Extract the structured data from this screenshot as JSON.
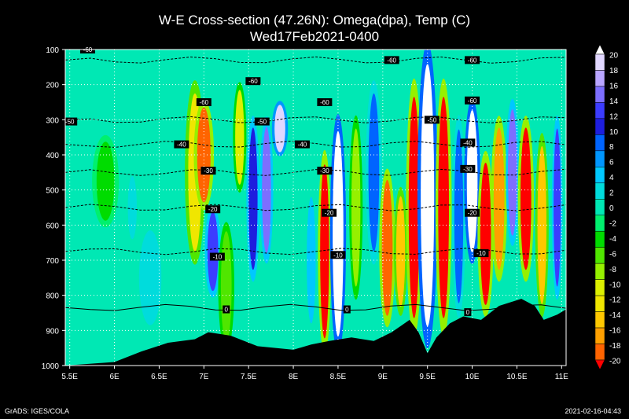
{
  "title": "W-E Cross-section (47.26N): Omega(dpa), Temp (C)",
  "subtitle": "Wed17Feb2021-0400",
  "footer_left": "GrADS: IGES/COLA",
  "footer_right": "2021-02-16-04:43",
  "chart_data": {
    "type": "heatmap",
    "x_ticks": [
      "5.5E",
      "6E",
      "6.5E",
      "7E",
      "7.5E",
      "8E",
      "8.5E",
      "9E",
      "9.5E",
      "10E",
      "10.5E",
      "11E"
    ],
    "x_range": [
      5.45,
      11.05
    ],
    "y_ticks": [
      "100",
      "200",
      "300",
      "400",
      "500",
      "600",
      "700",
      "800",
      "900",
      "1000"
    ],
    "y_range": [
      100,
      1000
    ],
    "colorbar": {
      "levels": [
        "20",
        "18",
        "16",
        "14",
        "12",
        "10",
        "8",
        "6",
        "4",
        "2",
        "0",
        "-2",
        "-4",
        "-6",
        "-8",
        "-10",
        "-12",
        "-14",
        "-16",
        "-18",
        "-20"
      ],
      "colors": [
        "#ffffff",
        "#e1d7ff",
        "#b9a5ff",
        "#7d6eff",
        "#3c3cff",
        "#1e1ede",
        "#0064ff",
        "#0096ff",
        "#00c8ff",
        "#00dcdc",
        "#00e8b4",
        "#00f06e",
        "#00dc00",
        "#50e600",
        "#96f000",
        "#dcf000",
        "#f0e600",
        "#ffc800",
        "#ffa000",
        "#ff6400",
        "#ff0000"
      ]
    },
    "temperature_contours": [
      {
        "label": "-60",
        "p": 130
      },
      {
        "label": "-50",
        "p": 300
      },
      {
        "label": "-40",
        "p": 370
      },
      {
        "label": "-30",
        "p": 450
      },
      {
        "label": "-20",
        "p": 550
      },
      {
        "label": "-10",
        "p": 675
      },
      {
        "label": "0",
        "p": 835
      }
    ],
    "temperature_labels": [
      {
        "label": "-60",
        "lon": 5.7,
        "p": 100
      },
      {
        "label": "-60",
        "lon": 7.0,
        "p": 250
      },
      {
        "label": "-60",
        "lon": 7.55,
        "p": 190
      },
      {
        "label": "-60",
        "lon": 8.35,
        "p": 250
      },
      {
        "label": "-60",
        "lon": 9.1,
        "p": 130
      },
      {
        "label": "-60",
        "lon": 10.0,
        "p": 130
      },
      {
        "label": "-60",
        "lon": 10.0,
        "p": 245
      },
      {
        "label": "-50",
        "lon": 5.5,
        "p": 305
      },
      {
        "label": "-50",
        "lon": 7.65,
        "p": 305
      },
      {
        "label": "-50",
        "lon": 9.55,
        "p": 300
      },
      {
        "label": "-40",
        "lon": 6.75,
        "p": 370
      },
      {
        "label": "-40",
        "lon": 8.1,
        "p": 370
      },
      {
        "label": "-40",
        "lon": 9.95,
        "p": 365
      },
      {
        "label": "-30",
        "lon": 7.05,
        "p": 445
      },
      {
        "label": "-30",
        "lon": 8.35,
        "p": 445
      },
      {
        "label": "-30",
        "lon": 9.95,
        "p": 440
      },
      {
        "label": "-20",
        "lon": 7.1,
        "p": 555
      },
      {
        "label": "-20",
        "lon": 8.4,
        "p": 565
      },
      {
        "label": "-20",
        "lon": 10.0,
        "p": 565
      },
      {
        "label": "-10",
        "lon": 7.15,
        "p": 690
      },
      {
        "label": "-10",
        "lon": 8.5,
        "p": 685
      },
      {
        "label": "-10",
        "lon": 10.1,
        "p": 680
      },
      {
        "label": "0",
        "lon": 7.25,
        "p": 840
      },
      {
        "label": "0",
        "lon": 8.6,
        "p": 840
      },
      {
        "label": "0",
        "lon": 9.95,
        "p": 848
      }
    ],
    "omega_bands": [
      {
        "lon": 5.9,
        "w": 0.2,
        "p0": 350,
        "p1": 600,
        "v": -3
      },
      {
        "lon": 6.2,
        "w": 0.1,
        "p0": 450,
        "p1": 650,
        "v": 3
      },
      {
        "lon": 6.4,
        "w": 0.25,
        "p0": 600,
        "p1": 900,
        "v": 3
      },
      {
        "lon": 6.9,
        "w": 0.15,
        "p0": 200,
        "p1": 700,
        "v": -12
      },
      {
        "lon": 7.0,
        "w": 0.15,
        "p0": 250,
        "p1": 550,
        "v": -18
      },
      {
        "lon": 7.1,
        "w": 0.12,
        "p0": 550,
        "p1": 800,
        "v": 12
      },
      {
        "lon": 7.25,
        "w": 0.12,
        "p0": 600,
        "p1": 950,
        "v": -6
      },
      {
        "lon": 7.4,
        "w": 0.1,
        "p0": 200,
        "p1": 500,
        "v": -10
      },
      {
        "lon": 7.55,
        "w": 0.1,
        "p0": 300,
        "p1": 750,
        "v": 10
      },
      {
        "lon": 7.7,
        "w": 0.1,
        "p0": 300,
        "p1": 700,
        "v": 14
      },
      {
        "lon": 7.85,
        "w": 0.12,
        "p0": 250,
        "p1": 400,
        "v": 18
      },
      {
        "lon": 8.2,
        "w": 0.1,
        "p0": 500,
        "p1": 900,
        "v": 4
      },
      {
        "lon": 8.35,
        "w": 0.1,
        "p0": 400,
        "p1": 950,
        "v": -20
      },
      {
        "lon": 8.5,
        "w": 0.12,
        "p0": 300,
        "p1": 950,
        "v": 20
      },
      {
        "lon": 8.7,
        "w": 0.1,
        "p0": 300,
        "p1": 800,
        "v": -8
      },
      {
        "lon": 8.9,
        "w": 0.12,
        "p0": 200,
        "p1": 700,
        "v": 8
      },
      {
        "lon": 9.05,
        "w": 0.12,
        "p0": 450,
        "p1": 880,
        "v": -18
      },
      {
        "lon": 9.2,
        "w": 0.1,
        "p0": 500,
        "p1": 850,
        "v": -14
      },
      {
        "lon": 9.35,
        "w": 0.12,
        "p0": 200,
        "p1": 900,
        "v": -20
      },
      {
        "lon": 9.5,
        "w": 0.15,
        "p0": 100,
        "p1": 930,
        "v": 20
      },
      {
        "lon": 9.68,
        "w": 0.12,
        "p0": 200,
        "p1": 900,
        "v": -20
      },
      {
        "lon": 9.85,
        "w": 0.1,
        "p0": 300,
        "p1": 850,
        "v": 8
      },
      {
        "lon": 10.0,
        "w": 0.12,
        "p0": 250,
        "p1": 700,
        "v": 20
      },
      {
        "lon": 10.15,
        "w": 0.12,
        "p0": 400,
        "p1": 850,
        "v": -20
      },
      {
        "lon": 10.3,
        "w": 0.12,
        "p0": 300,
        "p1": 750,
        "v": -16
      },
      {
        "lon": 10.45,
        "w": 0.1,
        "p0": 250,
        "p1": 650,
        "v": 14
      },
      {
        "lon": 10.6,
        "w": 0.12,
        "p0": 300,
        "p1": 750,
        "v": -20
      },
      {
        "lon": 10.78,
        "w": 0.1,
        "p0": 350,
        "p1": 850,
        "v": -14
      },
      {
        "lon": 10.95,
        "w": 0.08,
        "p0": 300,
        "p1": 800,
        "v": 12
      }
    ],
    "terrain_surface": [
      {
        "lon": 5.45,
        "p": 1000
      },
      {
        "lon": 6.0,
        "p": 990
      },
      {
        "lon": 6.3,
        "p": 960
      },
      {
        "lon": 6.6,
        "p": 935
      },
      {
        "lon": 6.9,
        "p": 925
      },
      {
        "lon": 7.05,
        "p": 905
      },
      {
        "lon": 7.3,
        "p": 915
      },
      {
        "lon": 7.6,
        "p": 945
      },
      {
        "lon": 8.0,
        "p": 955
      },
      {
        "lon": 8.2,
        "p": 940
      },
      {
        "lon": 8.4,
        "p": 930
      },
      {
        "lon": 8.65,
        "p": 920
      },
      {
        "lon": 8.9,
        "p": 930
      },
      {
        "lon": 9.1,
        "p": 905
      },
      {
        "lon": 9.3,
        "p": 870
      },
      {
        "lon": 9.4,
        "p": 905
      },
      {
        "lon": 9.5,
        "p": 965
      },
      {
        "lon": 9.6,
        "p": 920
      },
      {
        "lon": 9.75,
        "p": 880
      },
      {
        "lon": 9.9,
        "p": 860
      },
      {
        "lon": 10.1,
        "p": 870
      },
      {
        "lon": 10.3,
        "p": 830
      },
      {
        "lon": 10.55,
        "p": 810
      },
      {
        "lon": 10.7,
        "p": 830
      },
      {
        "lon": 10.8,
        "p": 870
      },
      {
        "lon": 10.95,
        "p": 855
      },
      {
        "lon": 11.05,
        "p": 840
      }
    ],
    "xlabel": "",
    "ylabel": ""
  }
}
